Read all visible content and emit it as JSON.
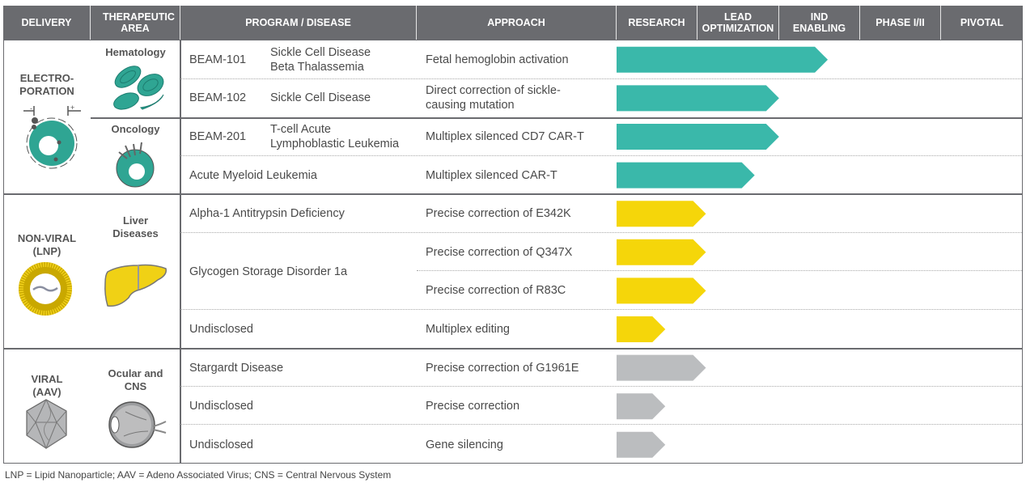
{
  "chart_data": {
    "type": "bar",
    "orientation": "horizontal",
    "title": "",
    "stages": [
      "RESEARCH",
      "LEAD OPTIMIZATION",
      "IND ENABLING",
      "PHASE I/II",
      "PIVOTAL"
    ],
    "value_unit": "stages completed (0 = start of Research, 5 = end of Pivotal)",
    "xlim": [
      0,
      5
    ],
    "headers": {
      "delivery": "DELIVERY",
      "area": "THERAPEUTIC AREA",
      "program": "PROGRAM / DISEASE",
      "approach": "APPROACH",
      "research": "RESEARCH",
      "lead": "LEAD OPTIMIZATION",
      "ind": "IND ENABLING",
      "phase": "PHASE I/II",
      "pivotal": "PIVOTAL"
    },
    "colors": {
      "electroporation": "#3ab8aa",
      "non_viral": "#f5d60a",
      "viral": "#bbbdbf",
      "header": "#6a6b6f"
    },
    "groups": [
      {
        "delivery": "ELECTRO-PORATION",
        "delivery_line1": "ELECTRO-",
        "delivery_line2": "PORATION",
        "color_key": "electroporation",
        "areas": [
          {
            "name": "Hematology"
          },
          {
            "name": "Oncology"
          }
        ]
      },
      {
        "delivery": "NON-VIRAL (LNP)",
        "delivery_line1": "NON-VIRAL",
        "delivery_line2": "(LNP)",
        "color_key": "non_viral",
        "areas": [
          {
            "name": "Liver Diseases",
            "line1": "Liver",
            "line2": "Diseases"
          }
        ]
      },
      {
        "delivery": "VIRAL (AAV)",
        "delivery_line1": "VIRAL",
        "delivery_line2": "(AAV)",
        "color_key": "viral",
        "areas": [
          {
            "name": "Ocular and CNS",
            "line1": "Ocular and",
            "line2": "CNS"
          }
        ]
      }
    ],
    "rows": [
      {
        "code": "BEAM-101",
        "disease": "Sickle Cell Disease",
        "disease2": "Beta Thalassemia",
        "approach": "Fetal hemoglobin activation",
        "approach2": "",
        "group": "electroporation",
        "value": 2.6
      },
      {
        "code": "BEAM-102",
        "disease": "Sickle Cell Disease",
        "disease2": "",
        "approach": "Direct correction of sickle-",
        "approach2": "causing mutation",
        "group": "electroporation",
        "value": 2.0
      },
      {
        "code": "BEAM-201",
        "disease": "T-cell Acute",
        "disease2": "Lymphoblastic Leukemia",
        "approach": "Multiplex silenced CD7 CAR-T",
        "approach2": "",
        "group": "electroporation",
        "value": 2.0
      },
      {
        "code": "",
        "disease": "Acute Myeloid Leukemia",
        "disease2": "",
        "approach": "Multiplex silenced CAR-T",
        "approach2": "",
        "group": "electroporation",
        "value": 1.7
      },
      {
        "code": "",
        "disease": "Alpha-1 Antitrypsin Deficiency",
        "disease2": "",
        "approach": "Precise correction of E342K",
        "approach2": "",
        "group": "non_viral",
        "value": 1.1
      },
      {
        "code": "",
        "disease": "Glycogen Storage Disorder 1a",
        "disease2": "",
        "approach": "Precise correction of Q347X",
        "approach2": "",
        "group": "non_viral",
        "value": 1.1
      },
      {
        "code": "",
        "disease": "",
        "disease2": "",
        "approach": "Precise correction of R83C",
        "approach2": "",
        "group": "non_viral",
        "value": 1.1
      },
      {
        "code": "",
        "disease": "Undisclosed",
        "disease2": "",
        "approach": "Multiplex editing",
        "approach2": "",
        "group": "non_viral",
        "value": 0.6
      },
      {
        "code": "",
        "disease": "Stargardt Disease",
        "disease2": "",
        "approach": "Precise correction of G1961E",
        "approach2": "",
        "group": "viral",
        "value": 1.1
      },
      {
        "code": "",
        "disease": "Undisclosed",
        "disease2": "",
        "approach": "Precise correction",
        "approach2": "",
        "group": "viral",
        "value": 0.6
      },
      {
        "code": "",
        "disease": "Undisclosed",
        "disease2": "",
        "approach": "Gene silencing",
        "approach2": "",
        "group": "viral",
        "value": 0.6
      }
    ],
    "footnote": "LNP = Lipid Nanoparticle; AAV = Adeno Associated Virus; CNS = Central Nervous System"
  }
}
